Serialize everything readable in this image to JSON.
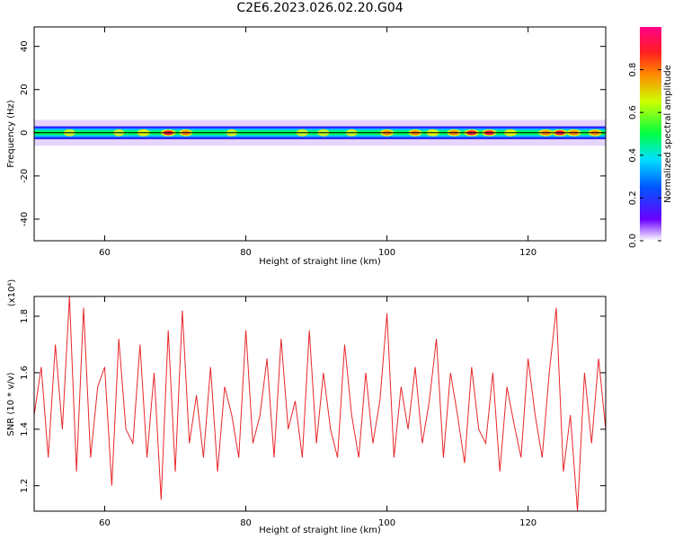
{
  "title": "C2E6.2023.026.02.20.G04",
  "colors": {
    "snr_line": "#e8262a",
    "axis": "#000000",
    "background": "#ffffff"
  },
  "chart_data": [
    {
      "type": "heatmap",
      "title": "C2E6.2023.026.02.20.G04",
      "xlabel": "Height of straight line (km)",
      "ylabel": "Frequency (Hz)",
      "xlim": [
        50,
        131
      ],
      "ylim": [
        -50,
        49
      ],
      "xticks": [
        "60",
        "80",
        "100",
        "120"
      ],
      "yticks": [
        "-40",
        "-20",
        "0",
        "20",
        "40"
      ],
      "colorbar": {
        "label": "Normalized spectral amplitude",
        "range": [
          0,
          1
        ],
        "ticks": [
          "0.0",
          "0.2",
          "0.4",
          "0.6",
          "0.8"
        ]
      },
      "band": {
        "center_hz": 0,
        "core_halfwidth_hz": 3,
        "halo_halfwidth_hz": 6,
        "peaks": [
          {
            "x": 55,
            "amp": 0.55
          },
          {
            "x": 62,
            "amp": 0.5
          },
          {
            "x": 65.5,
            "amp": 0.7
          },
          {
            "x": 69,
            "amp": 0.95
          },
          {
            "x": 71.5,
            "amp": 0.75
          },
          {
            "x": 78,
            "amp": 0.5
          },
          {
            "x": 88,
            "amp": 0.6
          },
          {
            "x": 91,
            "amp": 0.6
          },
          {
            "x": 95,
            "amp": 0.55
          },
          {
            "x": 100,
            "amp": 0.8
          },
          {
            "x": 104,
            "amp": 0.75
          },
          {
            "x": 106.5,
            "amp": 0.7
          },
          {
            "x": 109.5,
            "amp": 0.8
          },
          {
            "x": 112,
            "amp": 0.95
          },
          {
            "x": 114.5,
            "amp": 0.9
          },
          {
            "x": 117.5,
            "amp": 0.7
          },
          {
            "x": 122.5,
            "amp": 0.85
          },
          {
            "x": 124.5,
            "amp": 0.95
          },
          {
            "x": 126.5,
            "amp": 0.85
          },
          {
            "x": 129.5,
            "amp": 0.8
          }
        ]
      }
    },
    {
      "type": "line",
      "xlabel": "Height of straight line (km)",
      "ylabel": "SNR (10 * v/v)",
      "y_multiplier": "(x10⁴)",
      "xlim": [
        50,
        131
      ],
      "ylim": [
        1.11,
        1.87
      ],
      "xticks": [
        "60",
        "80",
        "100",
        "120"
      ],
      "yticks": [
        "1.2",
        "1.4",
        "1.6",
        "1.8"
      ],
      "series": [
        {
          "x": [
            50,
            51,
            52,
            53,
            54,
            55,
            56,
            57,
            58,
            59,
            60,
            61,
            62,
            63,
            64,
            65,
            66,
            67,
            68,
            69,
            70,
            71,
            72,
            73,
            74,
            75,
            76,
            77,
            78,
            79,
            80,
            81,
            82,
            83,
            84,
            85,
            86,
            87,
            88,
            89,
            90,
            91,
            92,
            93,
            94,
            95,
            96,
            97,
            98,
            99,
            100,
            101,
            102,
            103,
            104,
            105,
            106,
            107,
            108,
            109,
            110,
            111,
            112,
            113,
            114,
            115,
            116,
            117,
            118,
            119,
            120,
            121,
            122,
            123,
            124,
            125,
            126,
            127,
            128,
            129,
            130,
            131
          ],
          "y": [
            1.45,
            1.62,
            1.3,
            1.7,
            1.4,
            1.87,
            1.25,
            1.83,
            1.3,
            1.55,
            1.62,
            1.2,
            1.72,
            1.4,
            1.35,
            1.7,
            1.3,
            1.6,
            1.15,
            1.75,
            1.25,
            1.82,
            1.35,
            1.52,
            1.3,
            1.62,
            1.25,
            1.55,
            1.45,
            1.3,
            1.75,
            1.35,
            1.45,
            1.65,
            1.3,
            1.72,
            1.4,
            1.5,
            1.3,
            1.75,
            1.35,
            1.6,
            1.4,
            1.3,
            1.7,
            1.45,
            1.3,
            1.6,
            1.35,
            1.5,
            1.81,
            1.3,
            1.55,
            1.4,
            1.62,
            1.35,
            1.5,
            1.72,
            1.3,
            1.6,
            1.45,
            1.28,
            1.62,
            1.4,
            1.35,
            1.6,
            1.25,
            1.55,
            1.42,
            1.3,
            1.65,
            1.45,
            1.3,
            1.6,
            1.83,
            1.25,
            1.45,
            1.11,
            1.6,
            1.35,
            1.65,
            1.4
          ]
        }
      ]
    }
  ]
}
